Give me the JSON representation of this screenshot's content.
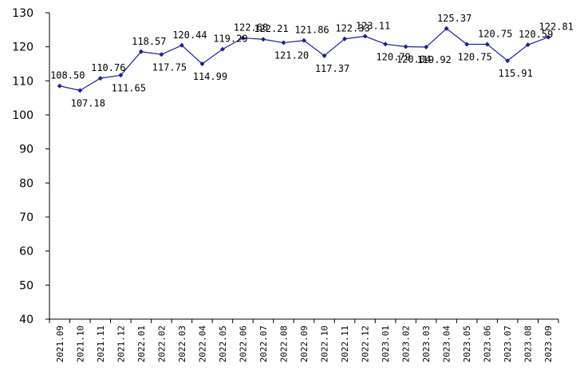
{
  "chart_data": {
    "type": "line",
    "title": "",
    "xlabel": "",
    "ylabel": "",
    "ylim": [
      40,
      130
    ],
    "yticks": [
      40,
      50,
      60,
      70,
      80,
      90,
      100,
      110,
      120,
      130
    ],
    "grid": false,
    "legend": "none",
    "colors": {
      "line": "#1f1f99",
      "marker": "#1f1f99"
    },
    "categories": [
      "2021.09",
      "2021.10",
      "2021.11",
      "2021.12",
      "2022.01",
      "2022.02",
      "2022.03",
      "2022.04",
      "2022.05",
      "2022.06",
      "2022.07",
      "2022.08",
      "2022.09",
      "2022.10",
      "2022.11",
      "2022.12",
      "2023.01",
      "2023.02",
      "2023.03",
      "2023.04",
      "2023.05",
      "2023.06",
      "2023.07",
      "2023.08",
      "2023.09"
    ],
    "series": [
      {
        "values": [
          108.5,
          107.18,
          110.76,
          111.65,
          118.57,
          117.75,
          120.44,
          114.99,
          119.29,
          122.6,
          122.21,
          121.2,
          121.86,
          117.37,
          122.33,
          123.11,
          120.79,
          120.04,
          119.92,
          125.37,
          120.75,
          120.75,
          115.91,
          120.59,
          122.81
        ],
        "labels": [
          "108.50",
          "107.18",
          "110.76",
          "111.65",
          "118.57",
          "117.75",
          "120.44",
          "114.99",
          "119.29",
          "122.60",
          "122.21",
          "121.20",
          "121.86",
          "117.37",
          "122.33",
          "123.11",
          "120.79",
          "120.04",
          "119.92",
          "125.37",
          "120.75",
          "120.75",
          "115.91",
          "120.59",
          "122.81"
        ]
      }
    ]
  }
}
